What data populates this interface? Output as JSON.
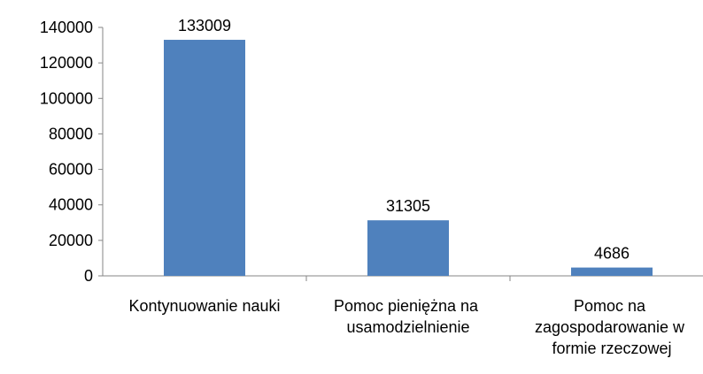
{
  "chart_data": {
    "type": "bar",
    "categories": [
      "Kontynuowanie nauki",
      "Pomoc pieniężna na usamodzielnienie",
      "Pomoc na zagospodarowanie w formie rzeczowej"
    ],
    "values": [
      133009,
      31305,
      4686
    ],
    "color": "#4f81bd",
    "ylim": [
      0,
      140000
    ],
    "yticks": [
      0,
      20000,
      40000,
      60000,
      80000,
      100000,
      120000,
      140000
    ],
    "grid": false
  }
}
